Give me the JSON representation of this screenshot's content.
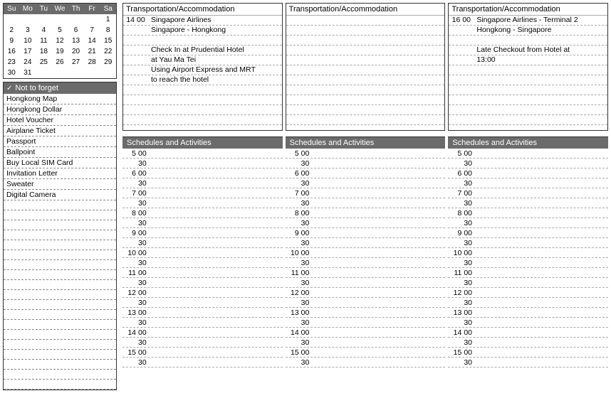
{
  "calendar": {
    "days": [
      "Su",
      "Mo",
      "Tu",
      "We",
      "Th",
      "Fr",
      "Sa"
    ],
    "cells": [
      "",
      "",
      "",
      "",
      "",
      "",
      "1",
      "2",
      "3",
      "4",
      "5",
      "6",
      "7",
      "8",
      "9",
      "10",
      "11",
      "12",
      "13",
      "14",
      "15",
      "16",
      "17",
      "18",
      "19",
      "20",
      "21",
      "22",
      "23",
      "24",
      "25",
      "26",
      "27",
      "28",
      "29",
      "30",
      "31",
      "",
      "",
      "",
      "",
      ""
    ]
  },
  "not_to_forget": {
    "title": "Not to forget",
    "items": [
      "Hongkong Map",
      "Hongkong Dollar",
      "Hotel Voucher",
      "Airplane Ticket",
      "Passport",
      "Ballpoint",
      "Buy Local SIM Card",
      "Invitation Letter",
      "Sweater",
      "Digital Camera",
      "",
      "",
      "",
      "",
      "",
      "",
      "",
      "",
      "",
      "",
      "",
      "",
      "",
      "",
      "",
      "",
      "",
      "",
      ""
    ]
  },
  "trans": [
    {
      "title": "Transportation/Accommodation",
      "lines": [
        {
          "h": "14",
          "m": "00",
          "t": "Singapore Airlines"
        },
        {
          "h": "",
          "m": "",
          "t": "Singapore - Hongkong"
        },
        {
          "h": "",
          "m": "",
          "t": ""
        },
        {
          "h": "",
          "m": "",
          "t": "Check In at Prudential Hotel"
        },
        {
          "h": "",
          "m": "",
          "t": "at Yau Ma Tei"
        },
        {
          "h": "",
          "m": "",
          "t": "Using Airport Express and MRT"
        },
        {
          "h": "",
          "m": "",
          "t": "to reach the hotel"
        },
        {
          "h": "",
          "m": "",
          "t": ""
        },
        {
          "h": "",
          "m": "",
          "t": ""
        },
        {
          "h": "",
          "m": "",
          "t": ""
        },
        {
          "h": "",
          "m": "",
          "t": ""
        }
      ]
    },
    {
      "title": "Transportation/Accommodation",
      "lines": [
        {
          "h": "",
          "m": "",
          "t": ""
        },
        {
          "h": "",
          "m": "",
          "t": ""
        },
        {
          "h": "",
          "m": "",
          "t": ""
        },
        {
          "h": "",
          "m": "",
          "t": ""
        },
        {
          "h": "",
          "m": "",
          "t": ""
        },
        {
          "h": "",
          "m": "",
          "t": ""
        },
        {
          "h": "",
          "m": "",
          "t": ""
        },
        {
          "h": "",
          "m": "",
          "t": ""
        },
        {
          "h": "",
          "m": "",
          "t": ""
        },
        {
          "h": "",
          "m": "",
          "t": ""
        },
        {
          "h": "",
          "m": "",
          "t": ""
        }
      ]
    },
    {
      "title": "Transportation/Accommodation",
      "lines": [
        {
          "h": "16",
          "m": "00",
          "t": "Singapore Airlines - Terminal 2"
        },
        {
          "h": "",
          "m": "",
          "t": "Hongkong - Singapore"
        },
        {
          "h": "",
          "m": "",
          "t": ""
        },
        {
          "h": "",
          "m": "",
          "t": "Late Checkout from Hotel at"
        },
        {
          "h": "",
          "m": "",
          "t": "13:00"
        },
        {
          "h": "",
          "m": "",
          "t": ""
        },
        {
          "h": "",
          "m": "",
          "t": ""
        },
        {
          "h": "",
          "m": "",
          "t": ""
        },
        {
          "h": "",
          "m": "",
          "t": ""
        },
        {
          "h": "",
          "m": "",
          "t": ""
        },
        {
          "h": "",
          "m": "",
          "t": ""
        }
      ]
    }
  ],
  "schedules": {
    "title": "Schedules and Activities",
    "hours": [
      5,
      6,
      7,
      8,
      9,
      10,
      11,
      12,
      13,
      14,
      15
    ]
  },
  "colors": {
    "header_bg": "#6b6b6b",
    "header_fg": "#ffffff",
    "border": "#333333",
    "dash": "#aaaaaa"
  }
}
